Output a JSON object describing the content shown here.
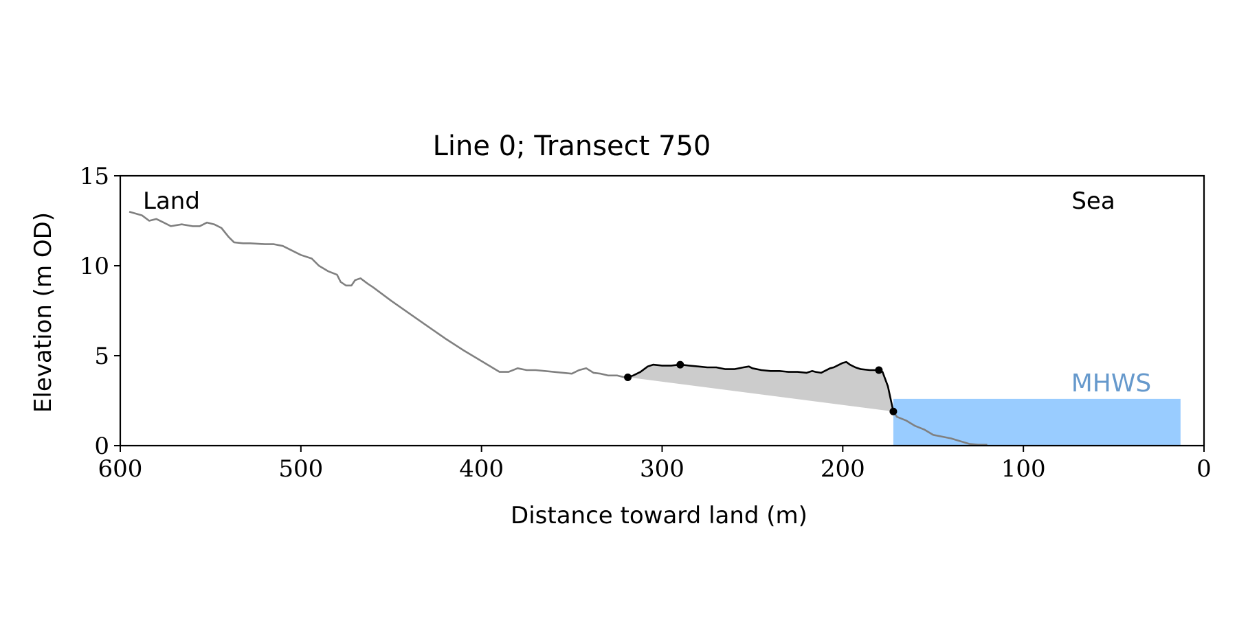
{
  "chart_data": {
    "type": "line",
    "title": "Line 0; Transect 750",
    "xlabel": "Distance toward land (m)",
    "ylabel": "Elevation (m OD)",
    "xlim": [
      600,
      0
    ],
    "ylim": [
      0,
      15
    ],
    "x_ticks": [
      600,
      500,
      400,
      300,
      200,
      100,
      0
    ],
    "y_ticks": [
      0,
      5,
      10,
      15
    ],
    "grid": false,
    "annotations": {
      "land": "Land",
      "sea": "Sea",
      "mhws": "MHWS"
    },
    "mhws": {
      "label": "MHWS",
      "elevation": 2.6,
      "x_from": 172,
      "x_to": 13,
      "color": "#99ccff",
      "label_color": "#6699cc"
    },
    "profile_color": "#808080",
    "highlight_color": "#000000",
    "fill_color": "#cccccc",
    "series": [
      {
        "id": "profile",
        "x": [
          595,
          588,
          584,
          580,
          576,
          572,
          566,
          560,
          556,
          552,
          548,
          544,
          540,
          537,
          532,
          528,
          520,
          515,
          510,
          500,
          494,
          490,
          485,
          480,
          478,
          475,
          472,
          470,
          467,
          463,
          460,
          450,
          440,
          430,
          420,
          410,
          400,
          390,
          385,
          380,
          375,
          370,
          360,
          350,
          346,
          342,
          338,
          334,
          330,
          325,
          321
        ],
        "y": [
          13.0,
          12.8,
          12.5,
          12.6,
          12.4,
          12.2,
          12.3,
          12.2,
          12.2,
          12.4,
          12.3,
          12.1,
          11.6,
          11.3,
          11.25,
          11.25,
          11.2,
          11.2,
          11.1,
          10.6,
          10.4,
          10.0,
          9.7,
          9.5,
          9.1,
          8.9,
          8.9,
          9.2,
          9.3,
          9.0,
          8.8,
          8.05,
          7.35,
          6.65,
          5.95,
          5.3,
          4.7,
          4.1,
          4.1,
          4.3,
          4.2,
          4.2,
          4.1,
          4.0,
          4.2,
          4.3,
          4.05,
          4.0,
          3.9,
          3.9,
          3.8
        ]
      },
      {
        "id": "profile-lower",
        "x": [
          172,
          170,
          165,
          160,
          155,
          150,
          145,
          140,
          135,
          130,
          125,
          120
        ],
        "y": [
          1.9,
          1.6,
          1.4,
          1.1,
          0.9,
          0.6,
          0.5,
          0.4,
          0.25,
          0.1,
          0.05,
          0.05
        ]
      },
      {
        "id": "highlight",
        "x": [
          319,
          316,
          312,
          308,
          305,
          300,
          295,
          290,
          285,
          280,
          275,
          270,
          265,
          260,
          255,
          252,
          250,
          245,
          240,
          235,
          230,
          225,
          220,
          217,
          215,
          212,
          210,
          207,
          205,
          202,
          200,
          198,
          196,
          193,
          190,
          185,
          183,
          180,
          178,
          175,
          172
        ],
        "y": [
          3.8,
          3.9,
          4.1,
          4.4,
          4.5,
          4.45,
          4.45,
          4.5,
          4.45,
          4.4,
          4.35,
          4.35,
          4.25,
          4.25,
          4.35,
          4.4,
          4.3,
          4.2,
          4.15,
          4.15,
          4.1,
          4.1,
          4.05,
          4.15,
          4.1,
          4.05,
          4.15,
          4.3,
          4.35,
          4.5,
          4.6,
          4.65,
          4.5,
          4.35,
          4.25,
          4.2,
          4.2,
          4.2,
          4.1,
          3.3,
          1.9
        ]
      }
    ],
    "markers": [
      {
        "x": 319,
        "y": 3.8
      },
      {
        "x": 290,
        "y": 4.5
      },
      {
        "x": 180,
        "y": 4.2
      },
      {
        "x": 172,
        "y": 1.9
      }
    ],
    "baseline": {
      "x": [
        319,
        172
      ],
      "y": [
        3.8,
        1.9
      ]
    }
  }
}
